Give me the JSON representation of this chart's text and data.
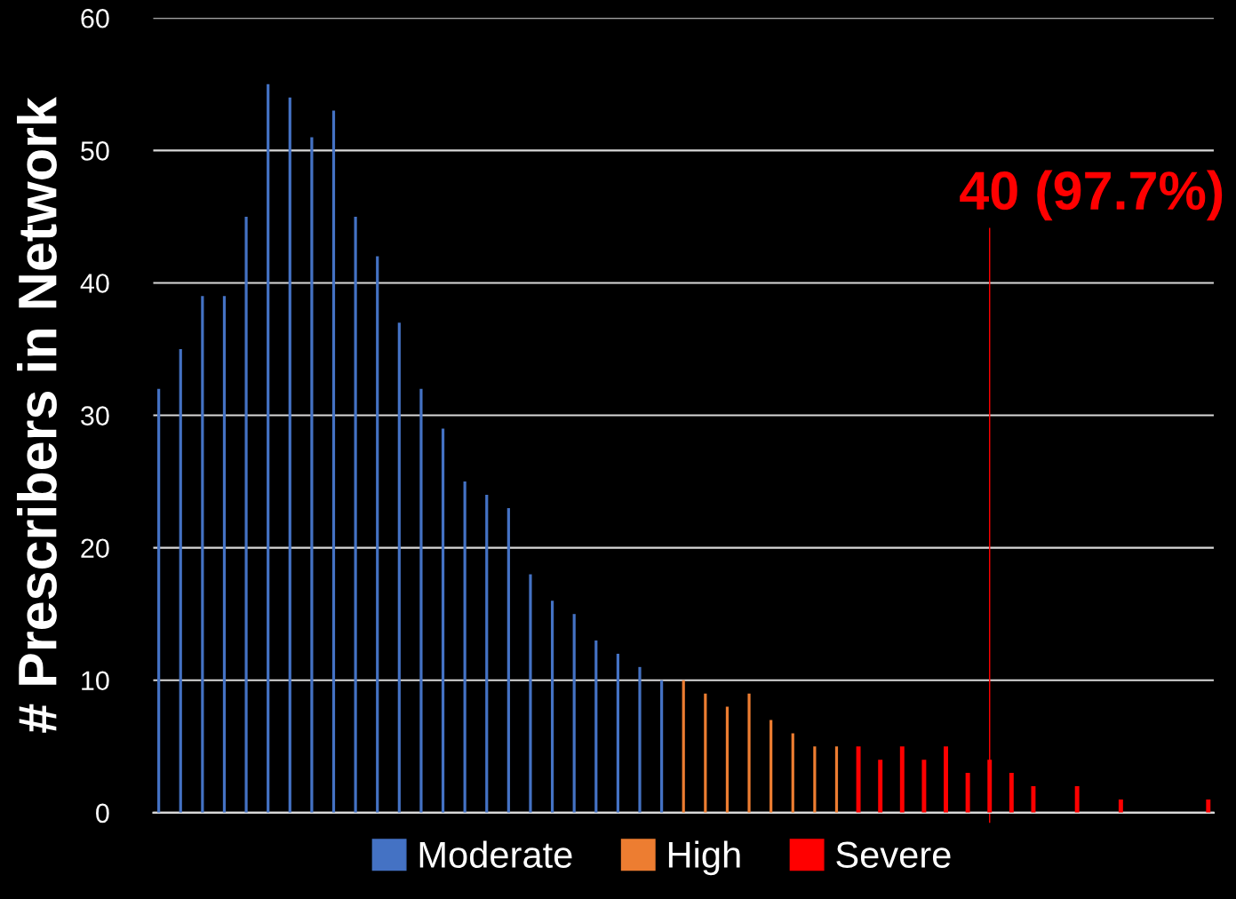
{
  "chart_data": {
    "type": "bar",
    "ylabel": "# Prescribers in Network",
    "categories": [
      null,
      null,
      null,
      null,
      null,
      null,
      null,
      null,
      null,
      null,
      null,
      null,
      null,
      null,
      null,
      null,
      null,
      null,
      null,
      null,
      null,
      null,
      null,
      null,
      null,
      null,
      null,
      null,
      null,
      null,
      null,
      null,
      null,
      null,
      null,
      null,
      null,
      null,
      null,
      null,
      null,
      null,
      null,
      null,
      null,
      null,
      null,
      null,
      null
    ],
    "series": [
      {
        "name": "Moderate",
        "color": "#4472c4",
        "values": [
          32,
          35,
          39,
          39,
          45,
          55,
          54,
          51,
          53,
          45,
          42,
          37,
          32,
          29,
          25,
          24,
          23,
          18,
          16,
          15,
          13,
          12,
          11,
          10,
          null,
          null,
          null,
          null,
          null,
          null,
          null,
          null,
          null,
          null,
          null,
          null,
          null,
          null,
          null,
          null,
          null,
          null,
          null,
          null,
          null,
          null,
          null,
          null,
          null
        ]
      },
      {
        "name": "High",
        "color": "#ed7d31",
        "values": [
          null,
          null,
          null,
          null,
          null,
          null,
          null,
          null,
          null,
          null,
          null,
          null,
          null,
          null,
          null,
          null,
          null,
          null,
          null,
          null,
          null,
          null,
          null,
          null,
          10,
          9,
          8,
          9,
          7,
          6,
          5,
          5,
          null,
          null,
          null,
          null,
          null,
          null,
          null,
          null,
          null,
          null,
          null,
          null,
          null,
          null,
          null,
          null,
          null
        ]
      },
      {
        "name": "Severe",
        "color": "#ff0000",
        "values": [
          null,
          null,
          null,
          null,
          null,
          null,
          null,
          null,
          null,
          null,
          null,
          null,
          null,
          null,
          null,
          null,
          null,
          null,
          null,
          null,
          null,
          null,
          null,
          null,
          null,
          null,
          null,
          null,
          null,
          null,
          null,
          null,
          5,
          4,
          5,
          4,
          5,
          3,
          4,
          3,
          2,
          0,
          2,
          0,
          1,
          0,
          0,
          0,
          1
        ]
      }
    ],
    "ylim": [
      0,
      60
    ],
    "yticks": [
      0,
      10,
      20,
      30,
      40,
      50,
      60
    ],
    "tick_labels": "y",
    "grid": "y",
    "legend": "bottom",
    "annotations": [
      "40 (97.7%)"
    ]
  }
}
